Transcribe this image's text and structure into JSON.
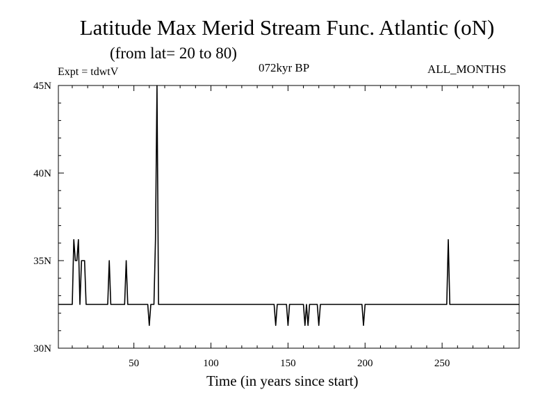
{
  "chart_data": {
    "type": "line",
    "title": "Latitude Max Merid Stream Func. Atlantic (oN)",
    "subtitle": "(from lat= 20 to 80)",
    "annotations": {
      "experiment": "Expt = tdwtV",
      "period": "072kyr BP",
      "months": "ALL_MONTHS"
    },
    "xlabel": "Time (in years since start)",
    "ylabel": "",
    "xlim": [
      1,
      300
    ],
    "ylim": [
      30,
      45
    ],
    "x_ticks": [
      50,
      100,
      150,
      200,
      250
    ],
    "y_ticks": [
      {
        "value": 30,
        "label": "30N"
      },
      {
        "value": 35,
        "label": "35N"
      },
      {
        "value": 40,
        "label": "40N"
      },
      {
        "value": 45,
        "label": "45N"
      }
    ],
    "grid": false,
    "series": [
      {
        "x": [
          1,
          10,
          11,
          12,
          13,
          14,
          15,
          16,
          17,
          18,
          19,
          20,
          21,
          33,
          34,
          35,
          44,
          45,
          46,
          59,
          60,
          61,
          63,
          64,
          65,
          66,
          67,
          141,
          142,
          143,
          149,
          150,
          151,
          160,
          161,
          162,
          163,
          164,
          165,
          169,
          170,
          171,
          198,
          199,
          200,
          253,
          254,
          255,
          256,
          300
        ],
        "y": [
          32.5,
          32.5,
          36.2,
          35.0,
          35.0,
          36.2,
          32.5,
          35.0,
          35.0,
          35.0,
          32.5,
          32.5,
          32.5,
          32.5,
          35.0,
          32.5,
          32.5,
          35.0,
          32.5,
          32.5,
          31.3,
          32.5,
          32.5,
          36.2,
          45.0,
          32.5,
          32.5,
          32.5,
          31.3,
          32.5,
          32.5,
          31.3,
          32.5,
          32.5,
          31.3,
          32.5,
          31.3,
          32.5,
          32.5,
          32.5,
          31.3,
          32.5,
          32.5,
          31.3,
          32.5,
          32.5,
          36.2,
          32.5,
          32.5,
          32.5
        ],
        "color": "#000000"
      }
    ]
  }
}
